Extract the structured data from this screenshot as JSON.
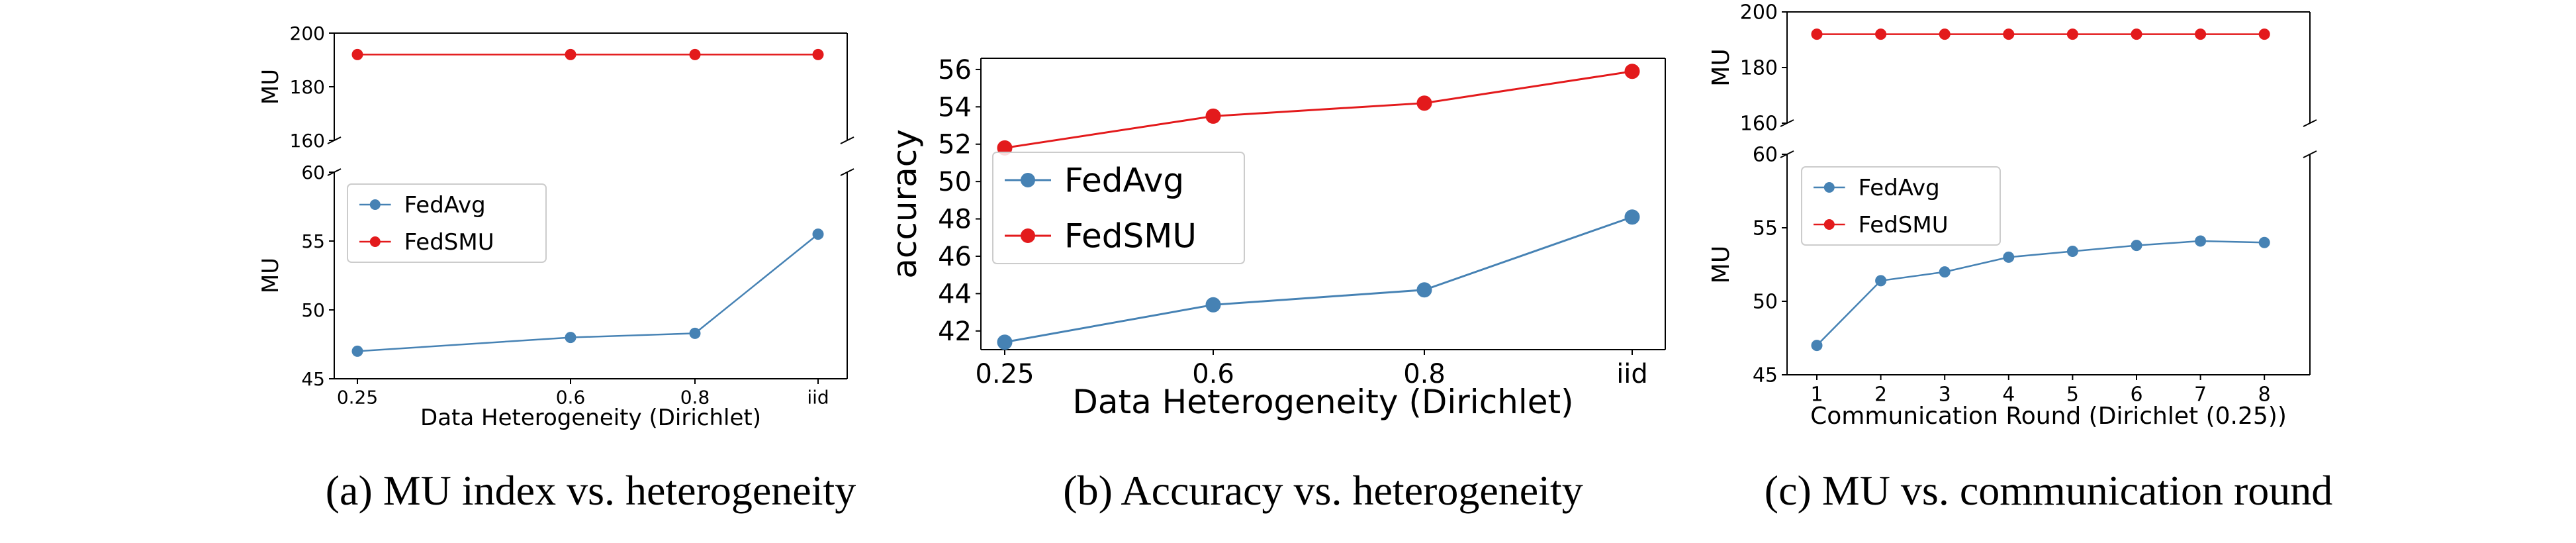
{
  "colors": {
    "fedavg": "#4682b4",
    "fedsmu": "#e31a1c",
    "axis": "#000000",
    "legend_border": "#cccccc"
  },
  "chart_data": [
    {
      "id": "a",
      "type": "line",
      "broken_y_axis": true,
      "caption": "(a) MU index vs. heterogeneity",
      "xlabel": "Data Heterogeneity (Dirichlet)",
      "x_ticks": [
        "0.25",
        "0.6",
        "0.8",
        "iid"
      ],
      "x": [
        0.25,
        0.6,
        0.8,
        1.0
      ],
      "top": {
        "ylabel": "MU",
        "ylim": [
          160,
          200
        ],
        "yticks": [
          "160",
          "180",
          "200"
        ]
      },
      "bottom": {
        "ylabel": "MU",
        "ylim": [
          45,
          60
        ],
        "yticks": [
          "45",
          "50",
          "55",
          "60"
        ]
      },
      "series": [
        {
          "name": "FedAvg",
          "color": "#4682b4",
          "values": [
            47.0,
            48.0,
            48.3,
            55.5
          ],
          "panel": "bottom"
        },
        {
          "name": "FedSMU",
          "color": "#e31a1c",
          "values": [
            192,
            192,
            192,
            192
          ],
          "panel": "top"
        }
      ],
      "legend": "top-left"
    },
    {
      "id": "b",
      "type": "line",
      "broken_y_axis": false,
      "caption": "(b) Accuracy vs. heterogeneity",
      "xlabel": "Data Heterogeneity (Dirichlet)",
      "ylabel": "accuracy",
      "x_ticks": [
        "0.25",
        "0.6",
        "0.8",
        "iid"
      ],
      "x": [
        0.25,
        0.6,
        0.8,
        1.0
      ],
      "ylim": [
        41,
        56.6
      ],
      "yticks": [
        "42",
        "44",
        "46",
        "48",
        "50",
        "52",
        "54",
        "56"
      ],
      "series": [
        {
          "name": "FedAvg",
          "color": "#4682b4",
          "values": [
            41.4,
            43.4,
            44.2,
            48.1
          ]
        },
        {
          "name": "FedSMU",
          "color": "#e31a1c",
          "values": [
            51.8,
            53.5,
            54.2,
            55.9
          ]
        }
      ],
      "legend": "center-left"
    },
    {
      "id": "c",
      "type": "line",
      "broken_y_axis": true,
      "caption": "(c) MU vs. communication round",
      "xlabel": "Communication Round (Dirichlet (0.25))",
      "x_ticks": [
        "1",
        "2",
        "3",
        "4",
        "5",
        "6",
        "7",
        "8"
      ],
      "x": [
        1,
        2,
        3,
        4,
        5,
        6,
        7,
        8
      ],
      "top": {
        "ylabel": "MU",
        "ylim": [
          160,
          200
        ],
        "yticks": [
          "160",
          "180",
          "200"
        ]
      },
      "bottom": {
        "ylabel": "MU",
        "ylim": [
          45,
          60
        ],
        "yticks": [
          "45",
          "50",
          "55",
          "60"
        ]
      },
      "series": [
        {
          "name": "FedAvg",
          "color": "#4682b4",
          "values": [
            47.0,
            51.4,
            52.0,
            53.0,
            53.4,
            53.8,
            54.1,
            54.0
          ],
          "panel": "bottom"
        },
        {
          "name": "FedSMU",
          "color": "#e31a1c",
          "values": [
            192,
            192,
            192,
            192,
            192,
            192,
            192,
            192
          ],
          "panel": "top"
        }
      ],
      "legend": "top-left"
    }
  ]
}
